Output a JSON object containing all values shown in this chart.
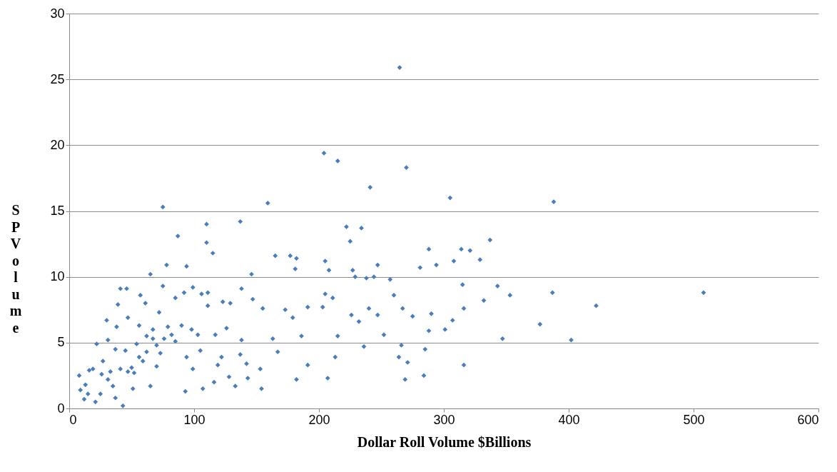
{
  "chart_data": {
    "type": "scatter",
    "xlabel": "Dollar Roll Volume $Billions",
    "ylabel": "SP Volume",
    "xlim": [
      0,
      600
    ],
    "xticks": [
      0,
      100,
      200,
      300,
      400,
      500,
      600
    ],
    "ylim": [
      0,
      30
    ],
    "yticks": [
      0,
      5,
      10,
      15,
      20,
      25,
      30
    ],
    "grid": "y",
    "marker": "diamond",
    "series": [
      {
        "color": "#4a7ebb",
        "x": [
          264.6,
          204,
          215,
          270,
          241,
          305,
          388,
          159,
          75,
          137,
          110,
          222,
          234,
          87,
          337,
          110,
          225,
          288,
          314,
          321,
          115,
          165,
          177,
          182,
          205,
          308,
          329,
          247,
          294,
          281,
          181,
          208,
          227,
          78,
          94,
          65,
          146,
          244,
          238,
          229,
          257,
          343,
          315,
          387,
          508,
          422,
          377,
          402,
          347,
          353,
          332,
          316,
          316,
          301,
          307,
          290,
          288,
          285,
          284,
          269,
          266,
          264,
          271,
          267,
          275,
          260,
          252,
          247,
          240,
          236,
          232,
          226,
          215,
          213,
          207,
          211,
          205,
          203,
          191,
          191,
          182,
          186,
          179,
          173,
          167,
          163,
          153,
          154,
          155,
          147,
          138,
          138,
          143,
          137,
          129,
          123,
          126,
          122,
          128,
          119,
          117,
          111,
          111,
          106,
          103,
          99,
          99,
          94,
          92,
          93,
          85,
          85,
          79,
          75,
          72,
          70,
          70,
          67,
          65,
          62,
          61,
          56,
          57,
          54,
          52,
          51,
          47,
          45,
          46,
          41,
          41,
          39,
          38,
          37,
          35,
          43,
          37,
          31,
          31,
          30,
          27,
          25,
          22,
          19,
          21,
          15,
          13,
          12,
          8,
          9,
          16,
          26,
          33,
          50,
          59,
          73,
          82,
          90,
          98,
          76,
          67,
          62,
          56,
          47,
          107,
          116,
          133,
          142,
          105
        ],
        "values": [
          25.9,
          19.4,
          18.8,
          18.3,
          16.8,
          16.0,
          15.7,
          15.6,
          15.3,
          14.2,
          14.0,
          13.8,
          13.7,
          13.1,
          12.8,
          12.6,
          12.7,
          12.1,
          12.1,
          12.0,
          11.8,
          11.6,
          11.6,
          11.4,
          11.2,
          11.2,
          11.3,
          10.9,
          10.9,
          10.7,
          10.6,
          10.5,
          10.5,
          10.9,
          10.8,
          10.2,
          10.2,
          10.0,
          9.9,
          10.0,
          9.8,
          9.3,
          9.4,
          8.8,
          8.8,
          7.8,
          6.4,
          5.2,
          5.3,
          8.6,
          8.2,
          7.6,
          3.3,
          6.0,
          6.7,
          7.2,
          5.9,
          4.5,
          2.5,
          2.2,
          4.8,
          3.9,
          3.5,
          7.6,
          7.0,
          8.6,
          5.6,
          7.1,
          7.6,
          4.7,
          6.6,
          7.1,
          5.5,
          3.9,
          2.3,
          8.4,
          8.7,
          7.7,
          7.7,
          3.3,
          2.2,
          5.5,
          6.9,
          7.5,
          4.3,
          5.3,
          3.0,
          1.5,
          7.6,
          8.3,
          9.1,
          5.2,
          2.3,
          4.1,
          8.0,
          8.1,
          6.1,
          3.9,
          2.4,
          3.3,
          5.6,
          8.8,
          7.8,
          8.7,
          5.6,
          9.2,
          3.0,
          3.9,
          8.8,
          1.3,
          8.4,
          5.1,
          6.2,
          9.3,
          7.3,
          4.8,
          3.2,
          6.0,
          1.7,
          4.3,
          8.0,
          6.3,
          8.6,
          4.9,
          2.7,
          1.5,
          6.9,
          4.4,
          9.1,
          3.0,
          9.1,
          7.9,
          6.2,
          4.5,
          1.7,
          0.2,
          0.8,
          2.2,
          5.2,
          6.7,
          3.6,
          1.1,
          4.9,
          3.0,
          0.5,
          1.1,
          1.8,
          0.7,
          2.5,
          1.4,
          2.9,
          2.6,
          2.8,
          3.1,
          3.6,
          4.2,
          5.6,
          6.3,
          6.0,
          5.3,
          5.3,
          5.5,
          3.9,
          2.8,
          1.5,
          2.0,
          1.7,
          3.4,
          4.4
        ]
      }
    ]
  }
}
